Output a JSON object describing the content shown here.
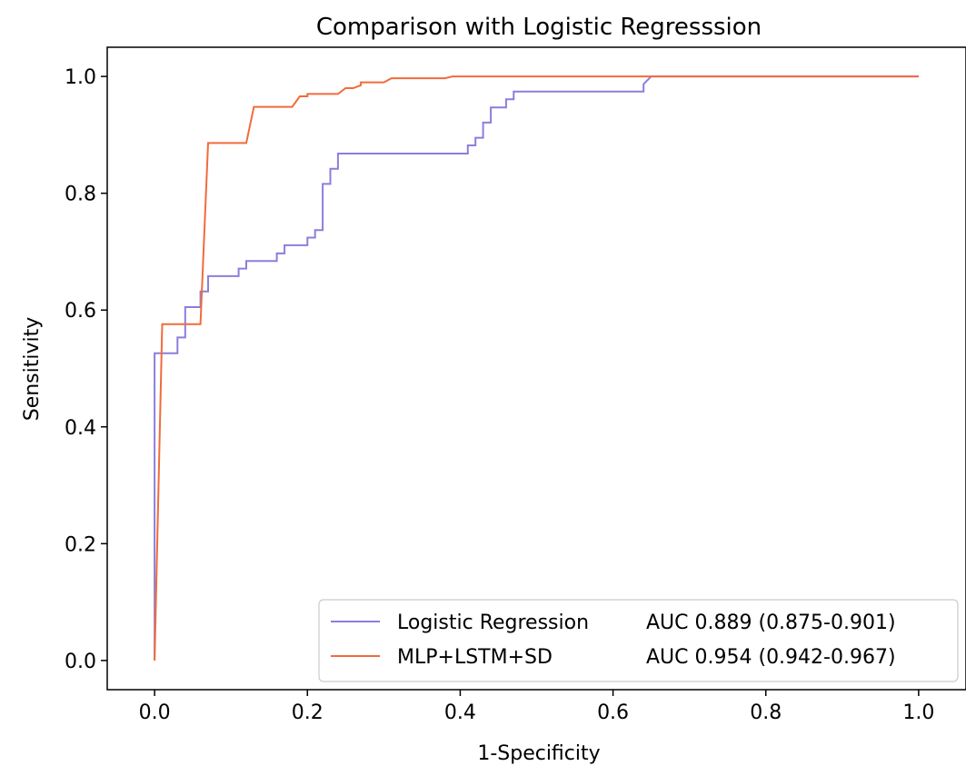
{
  "chart_data": {
    "type": "line",
    "title": "Comparison with Logistic Regresssion",
    "xlabel": "1-Specificity",
    "ylabel": "Sensitivity",
    "xlim": [
      -0.062,
      1.062
    ],
    "ylim": [
      -0.05,
      1.05
    ],
    "xticks": [
      "0.0",
      "0.2",
      "0.4",
      "0.6",
      "0.8",
      "1.0"
    ],
    "yticks": [
      "0.0",
      "0.2",
      "0.4",
      "0.6",
      "0.8",
      "1.0"
    ],
    "grid": false,
    "legend_position": "lower-right",
    "series": [
      {
        "name": "Logistic Regression",
        "metric": "AUC 0.889 (0.875-0.901)",
        "color": "#8a7fdc",
        "x": [
          0.0,
          0.0,
          0.03,
          0.03,
          0.04,
          0.04,
          0.06,
          0.06,
          0.07,
          0.07,
          0.11,
          0.11,
          0.12,
          0.12,
          0.16,
          0.16,
          0.17,
          0.17,
          0.2,
          0.2,
          0.21,
          0.21,
          0.22,
          0.22,
          0.23,
          0.23,
          0.24,
          0.24,
          0.41,
          0.41,
          0.42,
          0.42,
          0.43,
          0.43,
          0.44,
          0.44,
          0.46,
          0.46,
          0.47,
          0.47,
          0.64,
          0.64,
          0.65,
          1.0
        ],
        "y": [
          0.0,
          0.526,
          0.526,
          0.553,
          0.553,
          0.605,
          0.605,
          0.632,
          0.632,
          0.658,
          0.658,
          0.671,
          0.671,
          0.684,
          0.684,
          0.697,
          0.697,
          0.711,
          0.711,
          0.724,
          0.724,
          0.737,
          0.737,
          0.816,
          0.816,
          0.842,
          0.842,
          0.868,
          0.868,
          0.882,
          0.882,
          0.895,
          0.895,
          0.921,
          0.921,
          0.947,
          0.947,
          0.961,
          0.961,
          0.974,
          0.974,
          0.987,
          1.0,
          1.0
        ]
      },
      {
        "name": "MLP+LSTM+SD",
        "metric": "AUC 0.954 (0.942-0.967)",
        "color": "#f26b3a",
        "x": [
          0.0,
          0.01,
          0.06,
          0.07,
          0.12,
          0.13,
          0.18,
          0.19,
          0.2,
          0.2,
          0.24,
          0.25,
          0.26,
          0.27,
          0.27,
          0.3,
          0.31,
          0.38,
          0.39,
          1.0
        ],
        "y": [
          0.0,
          0.576,
          0.576,
          0.886,
          0.886,
          0.948,
          0.948,
          0.966,
          0.966,
          0.97,
          0.97,
          0.98,
          0.98,
          0.985,
          0.99,
          0.99,
          0.997,
          0.997,
          1.0,
          1.0
        ]
      }
    ]
  }
}
